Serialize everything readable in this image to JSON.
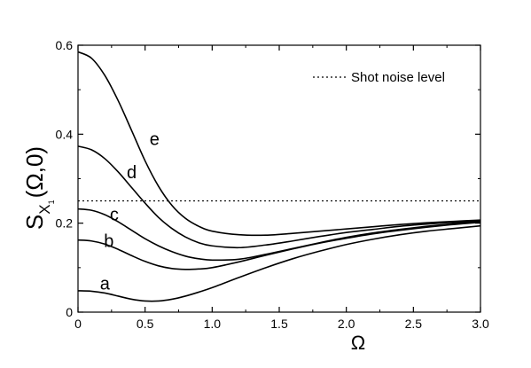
{
  "chart_data": {
    "type": "line",
    "xlabel": "Ω",
    "ylabel": {
      "main": "S",
      "sub": "X",
      "subsub": "1",
      "args": "(Ω,0)"
    },
    "xlim": [
      0,
      3.0
    ],
    "ylim": [
      0,
      0.6
    ],
    "xticks": [
      "0",
      "0.5",
      "1.0",
      "1.5",
      "2.0",
      "2.5",
      "3.0"
    ],
    "xtick_values": [
      0,
      0.5,
      1.0,
      1.5,
      2.0,
      2.5,
      3.0
    ],
    "yticks": [
      "0",
      "0.2",
      "0.4",
      "0.6"
    ],
    "ytick_values": [
      0,
      0.2,
      0.4,
      0.6
    ],
    "grid": false,
    "legend": {
      "position": "top-right",
      "entry": "Shot noise level",
      "style": "dotted"
    },
    "reference_line": {
      "name": "Shot noise level",
      "y": 0.25
    },
    "series": [
      {
        "name": "a",
        "label_at": [
          0.2,
          0.065
        ],
        "x": [
          0,
          0.1,
          0.2,
          0.3,
          0.4,
          0.5,
          0.6,
          0.7,
          0.8,
          0.9,
          1.0,
          1.2,
          1.4,
          1.6,
          1.8,
          2.0,
          2.2,
          2.4,
          2.6,
          2.8,
          3.0
        ],
        "y": [
          0.048,
          0.047,
          0.043,
          0.036,
          0.029,
          0.025,
          0.025,
          0.029,
          0.036,
          0.045,
          0.055,
          0.078,
          0.1,
          0.12,
          0.137,
          0.152,
          0.164,
          0.174,
          0.182,
          0.188,
          0.194
        ]
      },
      {
        "name": "b",
        "label_at": [
          0.23,
          0.16
        ],
        "x": [
          0,
          0.1,
          0.2,
          0.3,
          0.4,
          0.5,
          0.6,
          0.7,
          0.8,
          0.9,
          1.0,
          1.2,
          1.4,
          1.6,
          1.8,
          2.0,
          2.2,
          2.4,
          2.6,
          2.8,
          3.0
        ],
        "y": [
          0.162,
          0.16,
          0.153,
          0.141,
          0.127,
          0.114,
          0.104,
          0.098,
          0.096,
          0.097,
          0.1,
          0.113,
          0.128,
          0.142,
          0.155,
          0.166,
          0.176,
          0.184,
          0.191,
          0.197,
          0.202
        ]
      },
      {
        "name": "c",
        "label_at": [
          0.27,
          0.22
        ],
        "x": [
          0,
          0.1,
          0.2,
          0.3,
          0.4,
          0.5,
          0.6,
          0.7,
          0.8,
          0.9,
          1.0,
          1.2,
          1.4,
          1.6,
          1.8,
          2.0,
          2.2,
          2.4,
          2.6,
          2.8,
          3.0
        ],
        "y": [
          0.232,
          0.229,
          0.219,
          0.203,
          0.184,
          0.165,
          0.149,
          0.136,
          0.126,
          0.12,
          0.117,
          0.119,
          0.13,
          0.143,
          0.156,
          0.168,
          0.178,
          0.186,
          0.193,
          0.199,
          0.204
        ]
      },
      {
        "name": "d",
        "label_at": [
          0.4,
          0.315
        ],
        "x": [
          0,
          0.1,
          0.2,
          0.3,
          0.4,
          0.5,
          0.6,
          0.7,
          0.8,
          0.9,
          1.0,
          1.2,
          1.4,
          1.6,
          1.8,
          2.0,
          2.2,
          2.4,
          2.6,
          2.8,
          3.0
        ],
        "y": [
          0.373,
          0.365,
          0.345,
          0.315,
          0.28,
          0.245,
          0.213,
          0.188,
          0.169,
          0.156,
          0.149,
          0.145,
          0.151,
          0.16,
          0.17,
          0.179,
          0.186,
          0.193,
          0.198,
          0.202,
          0.205
        ]
      },
      {
        "name": "e",
        "label_at": [
          0.57,
          0.39
        ],
        "x": [
          0,
          0.1,
          0.2,
          0.3,
          0.4,
          0.5,
          0.6,
          0.7,
          0.8,
          0.9,
          1.0,
          1.2,
          1.4,
          1.6,
          1.8,
          2.0,
          2.2,
          2.4,
          2.6,
          2.8,
          3.0
        ],
        "y": [
          0.585,
          0.571,
          0.532,
          0.475,
          0.408,
          0.34,
          0.283,
          0.24,
          0.211,
          0.193,
          0.182,
          0.174,
          0.173,
          0.177,
          0.182,
          0.187,
          0.192,
          0.197,
          0.201,
          0.204,
          0.207
        ]
      }
    ]
  }
}
